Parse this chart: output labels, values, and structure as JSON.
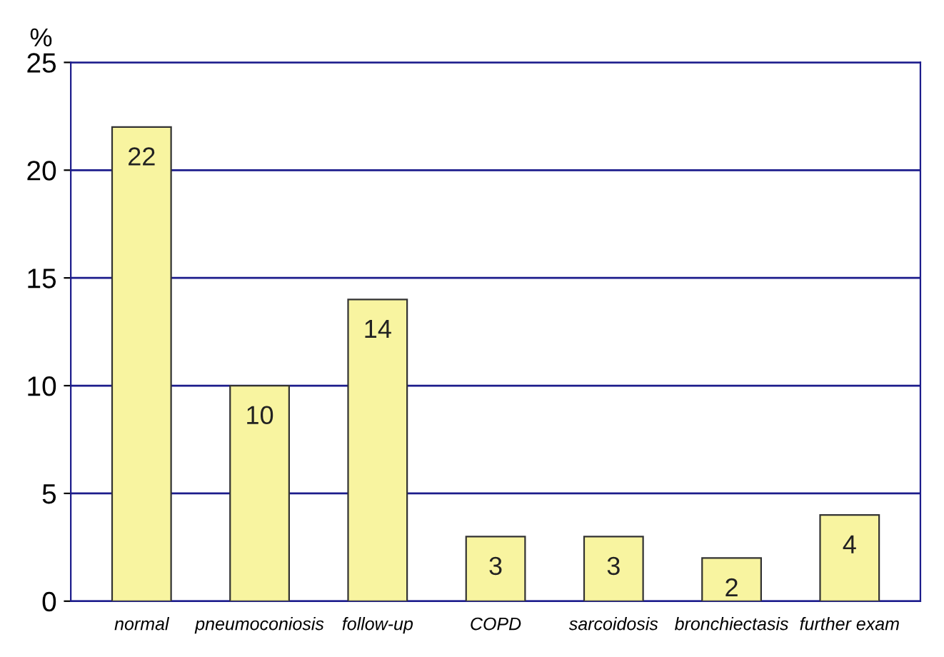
{
  "chart_data": {
    "type": "bar",
    "ylabel": "%",
    "categories": [
      "normal",
      "pneumoconiosis",
      "follow-up",
      "COPD",
      "sarcoidosis",
      "bronchiectasis",
      "further exam"
    ],
    "values": [
      22,
      10,
      14,
      3,
      3,
      2,
      4
    ],
    "color": "#f8f4a0",
    "ylim": [
      0,
      25
    ],
    "yticks": [
      0,
      5,
      10,
      15,
      20,
      25
    ],
    "grid": "y",
    "data_labels": true
  }
}
